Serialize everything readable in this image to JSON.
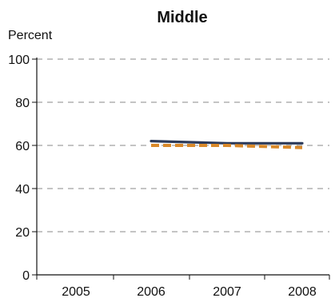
{
  "chart_data": {
    "type": "line",
    "title": "Middle",
    "ylabel": "Percent",
    "xlabel": "",
    "x_ticks": [
      "2005",
      "2006",
      "2007",
      "2008"
    ],
    "y_ticks": [
      0,
      20,
      40,
      60,
      80,
      100
    ],
    "xlim": [
      2005,
      2008
    ],
    "ylim": [
      0,
      100
    ],
    "grid": true,
    "series": [
      {
        "x": [
          2006,
          2007,
          2008
        ],
        "values": [
          62,
          61,
          61
        ],
        "color": "#2b3a5a",
        "style": "solid"
      },
      {
        "x": [
          2006,
          2007,
          2008
        ],
        "values": [
          60,
          60,
          59
        ],
        "color": "#d9892a",
        "style": "dashed"
      }
    ]
  }
}
